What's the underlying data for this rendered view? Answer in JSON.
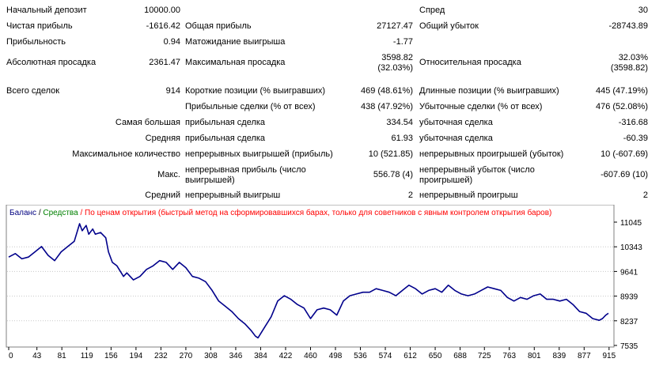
{
  "report": {
    "initial_deposit": {
      "label": "Начальный депозит",
      "value": "10000.00"
    },
    "spread": {
      "label": "Спред",
      "value": "30"
    },
    "net_profit": {
      "label": "Чистая прибыль",
      "value": "-1616.42"
    },
    "gross_profit": {
      "label": "Общая прибыль",
      "value": "27127.47"
    },
    "gross_loss": {
      "label": "Общий убыток",
      "value": "-28743.89"
    },
    "profit_factor": {
      "label": "Прибыльность",
      "value": "0.94"
    },
    "expected_payoff": {
      "label": "Матожидание выигрыша",
      "value": "-1.77"
    },
    "absolute_drawdown": {
      "label": "Абсолютная просадка",
      "value": "2361.47"
    },
    "maximal_drawdown": {
      "label": "Максимальная просадка",
      "value_line1": "3598.82",
      "value_line2": "(32.03%)"
    },
    "relative_drawdown": {
      "label": "Относительная просадка",
      "value_line1": "32.03%",
      "value_line2": "(3598.82)"
    },
    "total_trades": {
      "label": "Всего сделок",
      "value": "914"
    },
    "short_positions": {
      "label": "Короткие позиции (% выигравших)",
      "value": "469 (48.61%)"
    },
    "long_positions": {
      "label": "Длинные позиции (% выигравших)",
      "value": "445 (47.19%)"
    },
    "profit_trades": {
      "label": "Прибыльные сделки (% от всех)",
      "value": "438 (47.92%)"
    },
    "loss_trades": {
      "label": "Убыточные сделки (% от всех)",
      "value": "476 (52.08%)"
    },
    "largest": {
      "label": "Самая большая",
      "profit_label": "прибыльная сделка",
      "profit_value": "334.54",
      "loss_label": "убыточная сделка",
      "loss_value": "-316.68"
    },
    "average": {
      "label": "Средняя",
      "profit_label": "прибыльная сделка",
      "profit_value": "61.93",
      "loss_label": "убыточная сделка",
      "loss_value": "-60.39"
    },
    "max_consecutive": {
      "label": "Максимальное количество",
      "wins_label": "непрерывных выигрышей (прибыль)",
      "wins_value": "10 (521.85)",
      "losses_label": "непрерывных проигрышей (убыток)",
      "losses_value": "10 (-607.69)"
    },
    "maximal": {
      "label": "Макс.",
      "profit_label": "непрерывная прибыль (число выигрышей)",
      "profit_value": "556.78 (4)",
      "loss_label": "непрерывный убыток (число проигрышей)",
      "loss_value": "-607.69 (10)"
    },
    "avg_consecutive": {
      "label": "Средний",
      "wins_label": "непрерывный выигрыш",
      "wins_value": "2",
      "losses_label": "непрерывный проигрыш",
      "losses_value": "2"
    }
  },
  "colors": {
    "balance_line": "#00008b",
    "legend_balance": "#000080",
    "legend_equity": "#008000",
    "legend_note": "#ff0000",
    "grid": "#c8c8c8",
    "frame": "#808080"
  },
  "chart_data": {
    "type": "line",
    "legend": {
      "balance": "Баланс",
      "separator": " / ",
      "equity": "Средства",
      "note": " / По ценам открытия (быстрый метод на сформировавшихся барах, только для советников с явным контролем открытия баров)"
    },
    "x_ticks": [
      "0",
      "43",
      "81",
      "119",
      "156",
      "194",
      "232",
      "270",
      "308",
      "346",
      "384",
      "422",
      "460",
      "498",
      "536",
      "574",
      "612",
      "650",
      "688",
      "725",
      "763",
      "801",
      "839",
      "877",
      "915"
    ],
    "y_ticks": [
      "11045",
      "10343",
      "9641",
      "8939",
      "8237",
      "7535"
    ],
    "xlim": [
      0,
      914
    ],
    "ylim": [
      7535,
      11045
    ],
    "grid": true,
    "series": [
      {
        "name": "Баланс",
        "x": [
          0,
          10,
          20,
          30,
          40,
          50,
          60,
          70,
          80,
          90,
          100,
          108,
          112,
          118,
          122,
          128,
          132,
          140,
          148,
          152,
          158,
          165,
          175,
          180,
          190,
          200,
          210,
          220,
          230,
          240,
          250,
          260,
          270,
          280,
          290,
          300,
          310,
          320,
          330,
          340,
          350,
          360,
          370,
          376,
          380,
          390,
          400,
          410,
          420,
          430,
          440,
          450,
          460,
          470,
          480,
          490,
          500,
          510,
          520,
          530,
          540,
          550,
          560,
          570,
          580,
          590,
          600,
          610,
          620,
          630,
          640,
          650,
          660,
          670,
          680,
          690,
          700,
          710,
          720,
          730,
          740,
          750,
          760,
          770,
          780,
          790,
          800,
          810,
          820,
          830,
          840,
          850,
          860,
          870,
          880,
          890,
          900,
          905,
          910,
          914
        ],
        "y": [
          10050,
          10150,
          10000,
          10050,
          10200,
          10350,
          10100,
          9950,
          10200,
          10350,
          10500,
          11000,
          10800,
          10950,
          10700,
          10850,
          10700,
          10750,
          10600,
          10200,
          9900,
          9800,
          9500,
          9600,
          9400,
          9500,
          9700,
          9800,
          9950,
          9900,
          9700,
          9900,
          9750,
          9500,
          9450,
          9350,
          9100,
          8800,
          8650,
          8500,
          8300,
          8150,
          7950,
          7800,
          7750,
          8050,
          8350,
          8800,
          8950,
          8850,
          8700,
          8600,
          8300,
          8550,
          8600,
          8550,
          8400,
          8800,
          8950,
          9000,
          9050,
          9050,
          9150,
          9100,
          9050,
          8950,
          9100,
          9250,
          9150,
          9000,
          9100,
          9150,
          9050,
          9250,
          9100,
          9000,
          8950,
          9000,
          9100,
          9200,
          9150,
          9100,
          8900,
          8800,
          8900,
          8850,
          8950,
          9000,
          8850,
          8850,
          8800,
          8850,
          8700,
          8500,
          8450,
          8300,
          8250,
          8300,
          8400,
          8450
        ]
      }
    ]
  }
}
